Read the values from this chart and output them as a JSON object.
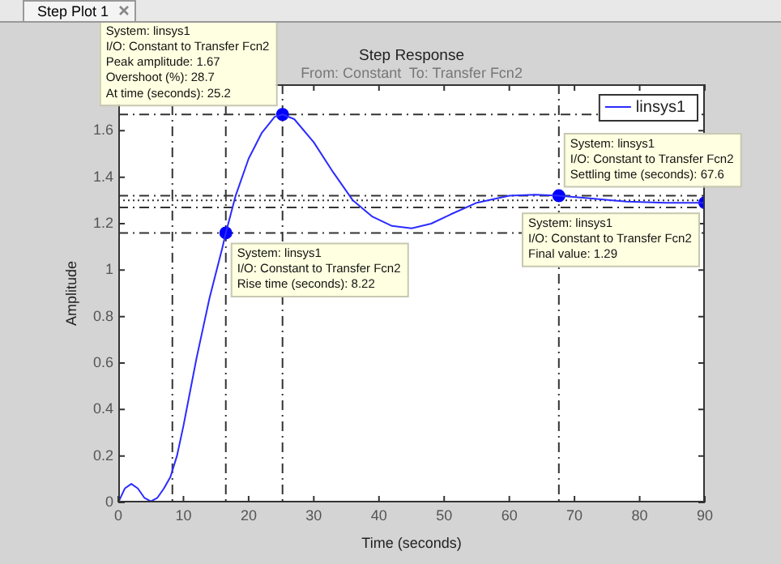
{
  "chart_data": {
    "type": "line",
    "title": "Step Response",
    "subtitle": "From: Constant  To: Transfer Fcn2",
    "xlabel": "Time (seconds)",
    "ylabel": "Amplitude",
    "xlim": [
      0,
      90
    ],
    "xticks": [
      0,
      10,
      20,
      30,
      40,
      50,
      60,
      70,
      80,
      90
    ],
    "ylim": [
      0,
      1.8
    ],
    "yticks": [
      0,
      0.2,
      0.4,
      0.6,
      0.8,
      1,
      1.2,
      1.4,
      1.6
    ],
    "grid": false,
    "legend": "top right",
    "series": [
      {
        "name": "linsys1",
        "type": "line",
        "color": "#2b2bff",
        "marker": "none",
        "x": [
          0,
          1,
          2,
          3,
          4,
          5,
          6,
          7,
          8,
          9,
          10,
          12,
          14,
          16,
          16.5,
          18,
          20,
          22,
          24,
          25.2,
          27,
          30,
          33,
          36,
          39,
          42,
          45,
          48,
          51,
          55,
          60,
          64,
          67.6,
          72,
          78,
          84,
          90
        ],
        "values": [
          0,
          0.06,
          0.08,
          0.06,
          0.02,
          0.005,
          0.02,
          0.06,
          0.11,
          0.2,
          0.33,
          0.62,
          0.88,
          1.1,
          1.16,
          1.32,
          1.48,
          1.59,
          1.66,
          1.67,
          1.65,
          1.55,
          1.42,
          1.3,
          1.23,
          1.19,
          1.18,
          1.2,
          1.24,
          1.29,
          1.32,
          1.325,
          1.32,
          1.31,
          1.295,
          1.29,
          1.29
        ]
      },
      {
        "type": "scatter",
        "color": "#0000ff",
        "marker": "circle",
        "x": [
          25.2,
          67.6,
          16.5,
          90
        ],
        "values": [
          1.67,
          1.32,
          1.16,
          1.29
        ]
      }
    ],
    "ref_lines": [
      {
        "axis": "x",
        "value": 8.3,
        "color": "#333333",
        "line_style": "dashed"
      },
      {
        "axis": "x",
        "value": 16.5,
        "color": "#333333",
        "line_style": "dashed"
      },
      {
        "axis": "x",
        "value": 25.2,
        "color": "#333333",
        "line_style": "dashed"
      },
      {
        "axis": "x",
        "value": 67.6,
        "color": "#333333",
        "line_style": "dashed"
      },
      {
        "axis": "y",
        "value": 1.67,
        "color": "#333333",
        "line_style": "dashed"
      },
      {
        "axis": "y",
        "value": 1.16,
        "color": "#333333",
        "line_style": "dashed"
      },
      {
        "axis": "y",
        "value": 1.32,
        "color": "#333333",
        "line_style": "dashed"
      },
      {
        "axis": "y",
        "value": 1.3,
        "color": "#333333",
        "line_style": "dotted"
      },
      {
        "axis": "y",
        "value": 1.27,
        "color": "#333333",
        "line_style": "dashed"
      }
    ],
    "annotations": [
      "Step Plot 1",
      {
        "text": "System: linsys1\nI/O: Constant to Transfer Fcn2\nPeak amplitude: 1.67\nOvershoot (%): 28.7\nAt time (seconds): 25.2",
        "x": 25.2,
        "y": 1.67
      },
      {
        "text": "System: linsys1\nI/O: Constant to Transfer Fcn2\nSettling time (seconds): 67.6",
        "x": 67.6,
        "y": 1.32
      },
      {
        "text": "System: linsys1\nI/O: Constant to Transfer Fcn2\nRise time (seconds): 8.22",
        "x": 16.5,
        "y": 1.16
      },
      {
        "text": "System: linsys1\nI/O: Constant to Transfer Fcn2\nFinal value: 1.29",
        "x": 90,
        "y": 1.29
      }
    ]
  }
}
